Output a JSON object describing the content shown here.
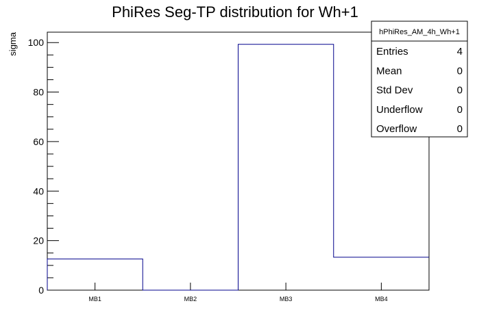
{
  "chart_data": {
    "type": "bar",
    "style": "step-histogram",
    "title": "PhiRes Seg-TP distribution for Wh+1",
    "xlabel": "",
    "ylabel": "sigma",
    "categories": [
      "MB1",
      "MB2",
      "MB3",
      "MB4"
    ],
    "values": [
      12.6,
      0,
      99.3,
      13.3
    ],
    "ylim": [
      0,
      104.2
    ],
    "yticks": [
      0,
      20,
      40,
      60,
      80,
      100
    ],
    "ytick_labels": [
      "0",
      "20",
      "40",
      "60",
      "80",
      "100"
    ],
    "grid": false,
    "line_color": "#00008b",
    "stats_box": {
      "placement": "top-right",
      "name": "hPhiRes_AM_4h_Wh+1",
      "rows": [
        {
          "label": "Entries",
          "value": "4"
        },
        {
          "label": "Mean",
          "value": "0"
        },
        {
          "label": "Std Dev",
          "value": "0"
        },
        {
          "label": "Underflow",
          "value": "0"
        },
        {
          "label": "Overflow",
          "value": "0"
        }
      ]
    }
  }
}
